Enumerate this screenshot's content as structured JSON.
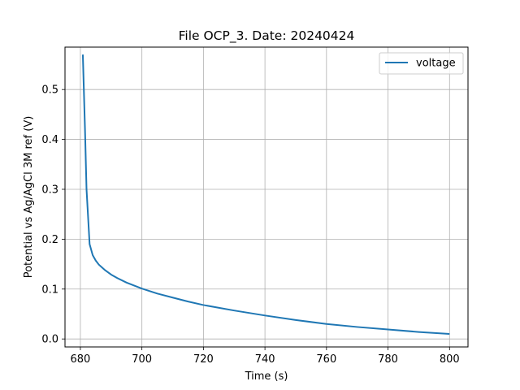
{
  "chart_data": {
    "type": "line",
    "title": "File OCP_3. Date: 20240424",
    "xlabel": "Time (s)",
    "ylabel": "Potential vs Ag/AgCl 3M ref (V)",
    "xlim": [
      675,
      806
    ],
    "ylim": [
      -0.016,
      0.585
    ],
    "xticks": [
      680,
      700,
      720,
      740,
      760,
      780,
      800
    ],
    "yticks": [
      0.0,
      0.1,
      0.2,
      0.3,
      0.4,
      0.5
    ],
    "grid": true,
    "legend_position": "top-right",
    "series": [
      {
        "name": "voltage",
        "color": "#1f77b4",
        "x": [
          680.8,
          681.5,
          682.0,
          682.5,
          683.0,
          684.0,
          685.0,
          686.0,
          688.0,
          690.0,
          692.0,
          695.0,
          700.0,
          705.0,
          710.0,
          715.0,
          720.0,
          730.0,
          740.0,
          750.0,
          760.0,
          770.0,
          780.0,
          790.0,
          800.0
        ],
        "y": [
          0.57,
          0.42,
          0.3,
          0.245,
          0.19,
          0.168,
          0.157,
          0.149,
          0.138,
          0.129,
          0.122,
          0.113,
          0.101,
          0.091,
          0.083,
          0.075,
          0.068,
          0.057,
          0.047,
          0.038,
          0.03,
          0.024,
          0.019,
          0.014,
          0.01
        ]
      }
    ]
  }
}
